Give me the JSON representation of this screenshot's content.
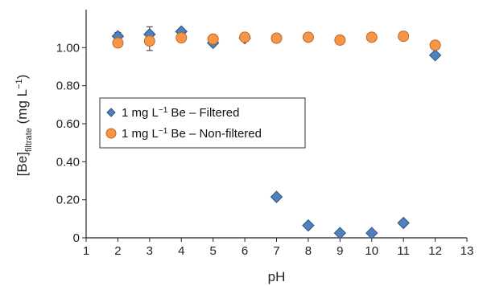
{
  "chart_data": {
    "type": "scatter",
    "xlabel": "pH",
    "ylabel": {
      "base": "[Be]",
      "sub": "filtrate",
      "unit_pre": " (mg L",
      "unit_sup": "−1",
      "unit_post": ")"
    },
    "xlim": [
      1,
      13
    ],
    "ylim": [
      0,
      1.2
    ],
    "x_ticks": [
      "1",
      "2",
      "3",
      "4",
      "5",
      "6",
      "7",
      "8",
      "9",
      "10",
      "11",
      "12",
      "13"
    ],
    "y_ticks": [
      "0",
      "0.20",
      "0.40",
      "0.60",
      "0.80",
      "1.00"
    ],
    "grid": false,
    "legend_position": "left-middle",
    "series": [
      {
        "name": "1 mg L−1 Be – Filtered",
        "legend_parts": {
          "pre": "1 mg L",
          "sup": "−1",
          "post": " Be – Filtered"
        },
        "marker": "diamond",
        "color": "#4f81bd",
        "stroke": "#2f527f",
        "x": [
          2,
          3,
          4,
          5,
          6,
          7,
          8,
          9,
          10,
          11,
          12
        ],
        "y": [
          1.06,
          1.07,
          1.085,
          1.025,
          1.05,
          0.215,
          0.065,
          0.025,
          0.025,
          0.078,
          0.96
        ],
        "error": [
          0.02,
          0.04,
          0.0,
          0.0,
          0.0,
          0.0,
          0.0,
          0.0,
          0.0,
          0.0,
          0.0
        ]
      },
      {
        "name": "1 mg L−1 Be – Non-filtered",
        "legend_parts": {
          "pre": "1 mg L",
          "sup": "−1",
          "post": " Be – Non-filtered"
        },
        "marker": "circle",
        "color": "#f79646",
        "stroke": "#c0672a",
        "x": [
          2,
          3,
          4,
          5,
          6,
          7,
          8,
          9,
          10,
          11,
          12
        ],
        "y": [
          1.025,
          1.035,
          1.052,
          1.045,
          1.055,
          1.05,
          1.055,
          1.04,
          1.055,
          1.06,
          1.013
        ],
        "error": [
          0.0,
          0.05,
          0.0,
          0.0,
          0.0,
          0.0,
          0.0,
          0.0,
          0.0,
          0.0,
          0.0
        ]
      }
    ]
  }
}
